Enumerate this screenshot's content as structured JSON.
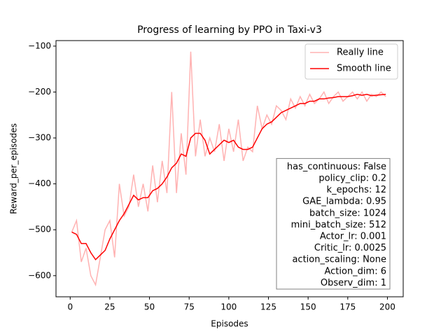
{
  "chart_data": {
    "type": "line",
    "title": "Progress of learning by PPO in Taxi-v3",
    "xlabel": "Episodes",
    "ylabel": "Reward_per_episodes",
    "x": [
      1,
      4,
      7,
      10,
      13,
      16,
      19,
      22,
      25,
      28,
      31,
      34,
      37,
      40,
      43,
      46,
      49,
      52,
      55,
      58,
      61,
      64,
      67,
      70,
      73,
      76,
      79,
      82,
      85,
      88,
      91,
      94,
      97,
      100,
      103,
      106,
      109,
      112,
      115,
      118,
      121,
      124,
      127,
      130,
      133,
      136,
      139,
      142,
      145,
      148,
      151,
      154,
      157,
      160,
      163,
      166,
      169,
      172,
      175,
      178,
      181,
      184,
      187,
      190,
      193,
      196,
      199
    ],
    "series": [
      {
        "name": "Really line",
        "color": "#ffb2b2",
        "values": [
          -505,
          -480,
          -570,
          -540,
          -600,
          -620,
          -560,
          -500,
          -480,
          -560,
          -400,
          -470,
          -450,
          -380,
          -450,
          -400,
          -460,
          -360,
          -440,
          -350,
          -420,
          -200,
          -420,
          -290,
          -380,
          -112,
          -340,
          -260,
          -340,
          -300,
          -330,
          -270,
          -350,
          -280,
          -330,
          -260,
          -350,
          -320,
          -330,
          -230,
          -280,
          -250,
          -270,
          -230,
          -240,
          -260,
          -215,
          -235,
          -210,
          -230,
          -205,
          -225,
          -215,
          -200,
          -225,
          -210,
          -200,
          -220,
          -210,
          -200,
          -215,
          -200,
          -220,
          -205,
          -210,
          -200,
          -210
        ]
      },
      {
        "name": "Smooth line",
        "color": "#ff0000",
        "values": [
          -505,
          -510,
          -530,
          -530,
          -550,
          -565,
          -555,
          -545,
          -520,
          -500,
          -480,
          -465,
          -445,
          -425,
          -435,
          -430,
          -430,
          -415,
          -410,
          -400,
          -385,
          -365,
          -355,
          -335,
          -340,
          -300,
          -290,
          -290,
          -305,
          -335,
          -325,
          -315,
          -305,
          -310,
          -305,
          -320,
          -325,
          -325,
          -320,
          -300,
          -280,
          -270,
          -265,
          -255,
          -245,
          -240,
          -235,
          -230,
          -225,
          -225,
          -220,
          -220,
          -215,
          -215,
          -213,
          -212,
          -210,
          -210,
          -210,
          -208,
          -205,
          -207,
          -205,
          -208,
          -207,
          -206,
          -205
        ]
      }
    ],
    "xlim": [
      -8.95,
      209.95
    ],
    "xticks": [
      0,
      25,
      50,
      75,
      100,
      125,
      150,
      175,
      200
    ],
    "ylim": [
      -646,
      -88
    ],
    "yticks": [
      {
        "value": -600,
        "label": "−600"
      },
      {
        "value": -500,
        "label": "−500"
      },
      {
        "value": -400,
        "label": "−400"
      },
      {
        "value": -300,
        "label": "−300"
      },
      {
        "value": -200,
        "label": "−200"
      },
      {
        "value": -100,
        "label": "−100"
      }
    ],
    "legend": "upper right",
    "annotation": [
      "has_continuous: False",
      "policy_clip: 0.2",
      "k_epochs: 12",
      "GAE_lambda: 0.95",
      "batch_size: 1024",
      "mini_batch_size: 512",
      "Actor_lr: 0.001",
      "Critic_lr: 0.0025",
      "action_scaling: None",
      "Action_dim: 6",
      "Observ_dim: 1"
    ]
  }
}
